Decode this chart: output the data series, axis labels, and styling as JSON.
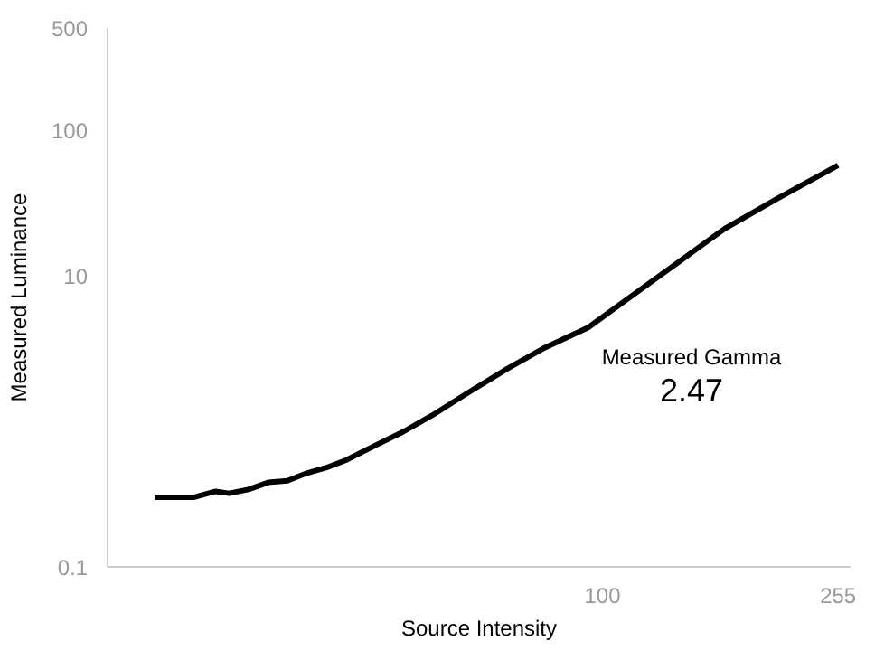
{
  "chart_data": {
    "type": "line",
    "xlabel": "Source Intensity",
    "ylabel": "Measured Luminance",
    "log": "xy",
    "grid": false,
    "marker": "none",
    "line_style": "solid",
    "xlim": [
      14,
      268
    ],
    "xticks": [
      100,
      255
    ],
    "ylim": [
      0.1,
      500
    ],
    "yticks": [
      0.1,
      10,
      100,
      500
    ],
    "annotations": [
      "Measured Gamma",
      "2.47"
    ],
    "series": [
      {
        "color": "#000000",
        "x": [
          16.9,
          19.0,
          19.7,
          21.5,
          22.7,
          24.5,
          26.5,
          28.6,
          30.9,
          33.4,
          36.1,
          40.5,
          45.4,
          50.9,
          59.1,
          68.6,
          79.6,
          94.5,
          113.7,
          162.6,
          201,
          255
        ],
        "values": [
          0.3,
          0.3,
          0.3,
          0.33,
          0.32,
          0.34,
          0.38,
          0.39,
          0.44,
          0.48,
          0.54,
          0.68,
          0.85,
          1.1,
          1.6,
          2.3,
          3.2,
          4.4,
          7.5,
          21,
          34,
          57
        ]
      }
    ]
  }
}
